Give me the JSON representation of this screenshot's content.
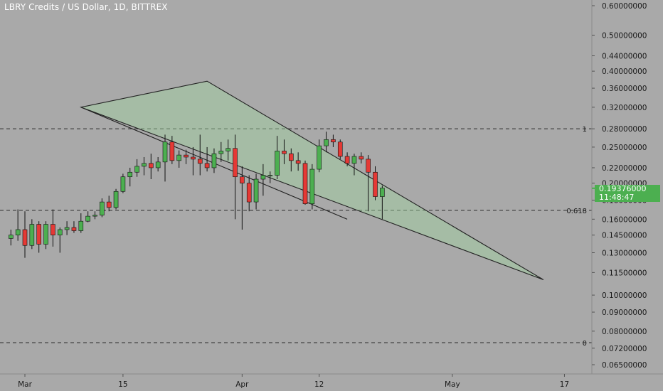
{
  "header": {
    "title": "LBRY Credits / US Dollar, 1D, BITTREX"
  },
  "price_badge": {
    "price": "0.19376000",
    "countdown": "11:48:47"
  },
  "chart_data": {
    "type": "candlestick",
    "title": "LBRY Credits / US Dollar, 1D, BITTREX",
    "y_scale": "log",
    "ylim": [
      0.06,
      0.66
    ],
    "y_ticks": [
      "0.60000000",
      "0.50000000",
      "0.44000000",
      "0.40000000",
      "0.36000000",
      "0.32000000",
      "0.28000000",
      "0.25000000",
      "0.22000000",
      "0.20000000",
      "0.18000000",
      "0.16000000",
      "0.14500000",
      "0.13000000",
      "0.11500000",
      "0.10000000",
      "0.09000000",
      "0.08000000",
      "0.07200000",
      "0.06500000"
    ],
    "x_ticks": [
      "Mar",
      "15",
      "Apr",
      "12",
      "May",
      "17"
    ],
    "up_color": "#4caf50",
    "down_color": "#e53935",
    "fib_levels": [
      {
        "label": "1",
        "value": 0.28
      },
      {
        "label": "0.618",
        "value": 0.169
      },
      {
        "label": "0",
        "value": 0.0745
      }
    ],
    "triangle_vertices": [
      {
        "day": "Mar 9",
        "price": 0.32
      },
      {
        "day": "Mar 27",
        "price": 0.376
      },
      {
        "day": "May 14",
        "price": 0.11
      }
    ],
    "lower_trendline": [
      {
        "day": "Mar 9",
        "price": 0.32
      },
      {
        "day": "Apr 16",
        "price": 0.16
      }
    ],
    "candles": [
      {
        "d": "Feb 27",
        "o": 0.142,
        "h": 0.15,
        "l": 0.136,
        "c": 0.145
      },
      {
        "d": "Feb 28",
        "o": 0.145,
        "h": 0.17,
        "l": 0.14,
        "c": 0.15
      },
      {
        "d": "Mar 1",
        "o": 0.15,
        "h": 0.168,
        "l": 0.126,
        "c": 0.136
      },
      {
        "d": "Mar 2",
        "o": 0.136,
        "h": 0.16,
        "l": 0.133,
        "c": 0.155
      },
      {
        "d": "Mar 3",
        "o": 0.155,
        "h": 0.158,
        "l": 0.13,
        "c": 0.137
      },
      {
        "d": "Mar 4",
        "o": 0.137,
        "h": 0.158,
        "l": 0.133,
        "c": 0.155
      },
      {
        "d": "Mar 5",
        "o": 0.155,
        "h": 0.17,
        "l": 0.135,
        "c": 0.145
      },
      {
        "d": "Mar 6",
        "o": 0.145,
        "h": 0.152,
        "l": 0.13,
        "c": 0.15
      },
      {
        "d": "Mar 7",
        "o": 0.15,
        "h": 0.158,
        "l": 0.145,
        "c": 0.152
      },
      {
        "d": "Mar 8",
        "o": 0.152,
        "h": 0.158,
        "l": 0.147,
        "c": 0.149
      },
      {
        "d": "Mar 9",
        "o": 0.149,
        "h": 0.166,
        "l": 0.147,
        "c": 0.158
      },
      {
        "d": "Mar 10",
        "o": 0.158,
        "h": 0.168,
        "l": 0.157,
        "c": 0.163
      },
      {
        "d": "Mar 11",
        "o": 0.163,
        "h": 0.168,
        "l": 0.16,
        "c": 0.164
      },
      {
        "d": "Mar 12",
        "o": 0.164,
        "h": 0.182,
        "l": 0.162,
        "c": 0.178
      },
      {
        "d": "Mar 13",
        "o": 0.178,
        "h": 0.185,
        "l": 0.168,
        "c": 0.172
      },
      {
        "d": "Mar 14",
        "o": 0.172,
        "h": 0.193,
        "l": 0.17,
        "c": 0.19
      },
      {
        "d": "Mar 15",
        "o": 0.19,
        "h": 0.212,
        "l": 0.188,
        "c": 0.208
      },
      {
        "d": "Mar 16",
        "o": 0.208,
        "h": 0.22,
        "l": 0.196,
        "c": 0.214
      },
      {
        "d": "Mar 17",
        "o": 0.214,
        "h": 0.232,
        "l": 0.208,
        "c": 0.222
      },
      {
        "d": "Mar 18",
        "o": 0.222,
        "h": 0.235,
        "l": 0.21,
        "c": 0.226
      },
      {
        "d": "Mar 19",
        "o": 0.226,
        "h": 0.24,
        "l": 0.205,
        "c": 0.22
      },
      {
        "d": "Mar 20",
        "o": 0.22,
        "h": 0.235,
        "l": 0.215,
        "c": 0.228
      },
      {
        "d": "Mar 21",
        "o": 0.228,
        "h": 0.27,
        "l": 0.202,
        "c": 0.258
      },
      {
        "d": "Mar 22",
        "o": 0.258,
        "h": 0.268,
        "l": 0.225,
        "c": 0.23
      },
      {
        "d": "Mar 23",
        "o": 0.23,
        "h": 0.245,
        "l": 0.22,
        "c": 0.238
      },
      {
        "d": "Mar 24",
        "o": 0.238,
        "h": 0.246,
        "l": 0.225,
        "c": 0.235
      },
      {
        "d": "Mar 25",
        "o": 0.235,
        "h": 0.25,
        "l": 0.21,
        "c": 0.232
      },
      {
        "d": "Mar 26",
        "o": 0.232,
        "h": 0.27,
        "l": 0.21,
        "c": 0.226
      },
      {
        "d": "Mar 27",
        "o": 0.226,
        "h": 0.25,
        "l": 0.215,
        "c": 0.22
      },
      {
        "d": "Mar 28",
        "o": 0.22,
        "h": 0.248,
        "l": 0.213,
        "c": 0.24
      },
      {
        "d": "Mar 29",
        "o": 0.24,
        "h": 0.258,
        "l": 0.228,
        "c": 0.244
      },
      {
        "d": "Mar 30",
        "o": 0.244,
        "h": 0.262,
        "l": 0.23,
        "c": 0.248
      },
      {
        "d": "Mar 31",
        "o": 0.248,
        "h": 0.27,
        "l": 0.16,
        "c": 0.208
      },
      {
        "d": "Apr 1",
        "o": 0.208,
        "h": 0.222,
        "l": 0.15,
        "c": 0.2
      },
      {
        "d": "Apr 2",
        "o": 0.2,
        "h": 0.21,
        "l": 0.168,
        "c": 0.178
      },
      {
        "d": "Apr 3",
        "o": 0.178,
        "h": 0.212,
        "l": 0.17,
        "c": 0.205
      },
      {
        "d": "Apr 4",
        "o": 0.205,
        "h": 0.225,
        "l": 0.185,
        "c": 0.21
      },
      {
        "d": "Apr 5",
        "o": 0.21,
        "h": 0.215,
        "l": 0.2,
        "c": 0.21
      },
      {
        "d": "Apr 6",
        "o": 0.21,
        "h": 0.268,
        "l": 0.205,
        "c": 0.244
      },
      {
        "d": "Apr 7",
        "o": 0.244,
        "h": 0.262,
        "l": 0.225,
        "c": 0.24
      },
      {
        "d": "Apr 8",
        "o": 0.24,
        "h": 0.248,
        "l": 0.215,
        "c": 0.23
      },
      {
        "d": "Apr 9",
        "o": 0.23,
        "h": 0.242,
        "l": 0.216,
        "c": 0.226
      },
      {
        "d": "Apr 10",
        "o": 0.226,
        "h": 0.23,
        "l": 0.175,
        "c": 0.176
      },
      {
        "d": "Apr 11",
        "o": 0.176,
        "h": 0.225,
        "l": 0.17,
        "c": 0.218
      },
      {
        "d": "Apr 12",
        "o": 0.218,
        "h": 0.262,
        "l": 0.214,
        "c": 0.252
      },
      {
        "d": "Apr 13",
        "o": 0.252,
        "h": 0.275,
        "l": 0.242,
        "c": 0.262
      },
      {
        "d": "Apr 14",
        "o": 0.262,
        "h": 0.27,
        "l": 0.25,
        "c": 0.258
      },
      {
        "d": "Apr 15",
        "o": 0.258,
        "h": 0.262,
        "l": 0.232,
        "c": 0.236
      },
      {
        "d": "Apr 16",
        "o": 0.236,
        "h": 0.242,
        "l": 0.222,
        "c": 0.226
      },
      {
        "d": "Apr 17",
        "o": 0.226,
        "h": 0.24,
        "l": 0.21,
        "c": 0.236
      },
      {
        "d": "Apr 18",
        "o": 0.236,
        "h": 0.242,
        "l": 0.226,
        "c": 0.232
      },
      {
        "d": "Apr 19",
        "o": 0.232,
        "h": 0.238,
        "l": 0.168,
        "c": 0.214
      },
      {
        "d": "Apr 20",
        "o": 0.214,
        "h": 0.222,
        "l": 0.18,
        "c": 0.184
      },
      {
        "d": "Apr 21",
        "o": 0.184,
        "h": 0.197,
        "l": 0.16,
        "c": 0.194
      }
    ]
  }
}
